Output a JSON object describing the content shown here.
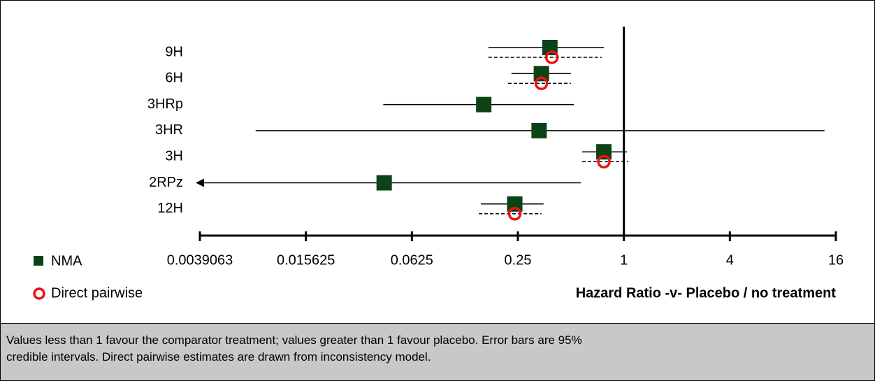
{
  "chart_data": {
    "type": "forest",
    "categories": [
      "9H",
      "6H",
      "3HRp",
      "3HR",
      "3H",
      "2RPz",
      "12H"
    ],
    "series": [
      {
        "name": "NMA",
        "color": "#0b4216",
        "values": [
          0.38,
          0.34,
          0.16,
          0.33,
          0.77,
          0.0435,
          0.24
        ],
        "lower": [
          0.17,
          0.23,
          0.043,
          0.0081,
          0.58,
          null,
          0.154
        ],
        "upper": [
          0.77,
          0.5,
          0.52,
          13.8,
          1.04,
          0.57,
          0.35
        ]
      },
      {
        "name": "Direct pairwise",
        "color": "#ee1111",
        "values": [
          0.39,
          0.34,
          null,
          null,
          0.77,
          null,
          0.24
        ],
        "lower": [
          0.17,
          0.22,
          null,
          null,
          0.58,
          null,
          0.15
        ],
        "upper": [
          0.75,
          0.5,
          null,
          null,
          1.06,
          null,
          0.34
        ]
      }
    ],
    "xlabel": "Hazard Ratio -v- Placebo / no treatment",
    "xlim": [
      0.0039063,
      16
    ],
    "xscale": "log2",
    "xticks": [
      0.0039063,
      0.015625,
      0.0625,
      0.25,
      1,
      4,
      16
    ],
    "reference_line": 1,
    "footnote": [
      "Values less than 1 favour the comparator treatment; values greater than 1 favour placebo. Error bars are 95%",
      "credible intervals. Direct pairwise estimates are drawn from inconsistency model."
    ]
  }
}
